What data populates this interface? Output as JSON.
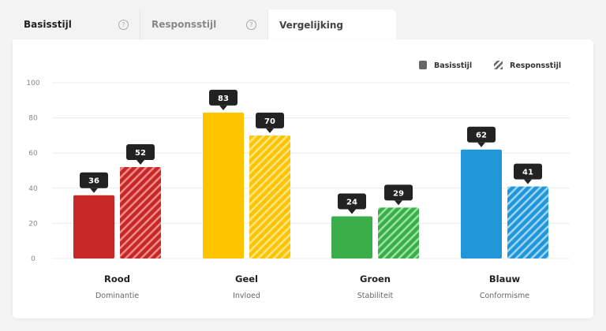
{
  "tabs": [
    {
      "label": "Basisstijl",
      "help": "?"
    },
    {
      "label": "Responsstijl",
      "help": "?"
    },
    {
      "label": "Vergelijking"
    }
  ],
  "active_tab": "Vergelijking",
  "chart_data": {
    "type": "bar",
    "categories": [
      "Rood",
      "Geel",
      "Groen",
      "Blauw"
    ],
    "subtitles": [
      "Dominantie",
      "Invloed",
      "Stabiliteit",
      "Conformisme"
    ],
    "colors": [
      "#c62828",
      "#ffc400",
      "#3aae49",
      "#2196d9"
    ],
    "stripe_colors": [
      "#f28b8b",
      "#ffe58a",
      "#9be3a4",
      "#9fd6f5"
    ],
    "series": [
      {
        "name": "Basisstijl",
        "style": "solid",
        "values": [
          36,
          83,
          24,
          62
        ]
      },
      {
        "name": "Responsstijl",
        "style": "hatched",
        "values": [
          52,
          70,
          29,
          41
        ]
      }
    ],
    "ylim": [
      0,
      100
    ],
    "yticks": [
      0,
      20,
      40,
      60,
      80,
      100
    ],
    "grid": true,
    "legend": "top-right"
  }
}
